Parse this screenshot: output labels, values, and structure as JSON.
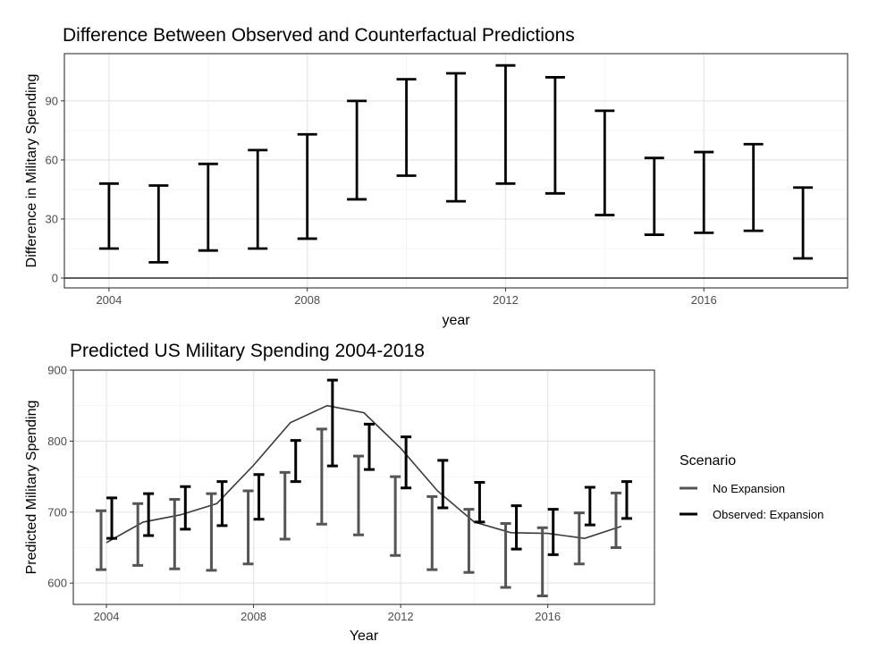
{
  "chart_data": [
    {
      "type": "errorbar",
      "title": "Difference Between Observed and Counterfactual Predictions",
      "xlabel": "year",
      "ylabel": "Difference in Military Spending",
      "xlim": [
        2003.1,
        2018.9
      ],
      "ylim": [
        -5,
        114
      ],
      "x_ticks": [
        2004,
        2008,
        2012,
        2016
      ],
      "y_ticks": [
        0,
        30,
        60,
        90
      ],
      "reference_line": 0,
      "grid": true,
      "series": [
        {
          "x": [
            2004,
            2005,
            2006,
            2007,
            2008,
            2009,
            2010,
            2011,
            2012,
            2013,
            2014,
            2015,
            2016,
            2017,
            2018
          ],
          "lower": [
            15,
            8,
            14,
            15,
            20,
            40,
            52,
            39,
            48,
            43,
            32,
            22,
            23,
            24,
            10
          ],
          "upper": [
            48,
            47,
            58,
            65,
            73,
            90,
            101,
            104,
            108,
            102,
            85,
            61,
            64,
            68,
            46
          ],
          "color": "#000000"
        }
      ]
    },
    {
      "type": "errorbar",
      "title": "Predicted US Military Spending 2004-2018",
      "xlabel": "Year",
      "ylabel": "Predicted Military Spending",
      "xlim": [
        2003.1,
        2018.9
      ],
      "ylim": [
        570,
        900
      ],
      "x_ticks": [
        2004,
        2008,
        2012,
        2016
      ],
      "y_ticks": [
        600,
        700,
        800,
        900
      ],
      "grid": true,
      "legend_title": "Scenario",
      "legend_position": "right",
      "trend_line": {
        "x": [
          2004,
          2005,
          2006,
          2007,
          2008,
          2009,
          2010,
          2011,
          2012,
          2013,
          2014,
          2015,
          2016,
          2017,
          2018
        ],
        "y": [
          657,
          686,
          696,
          712,
          766,
          826,
          850,
          840,
          790,
          730,
          686,
          671,
          670,
          663,
          680
        ],
        "color": "#3a3a3a"
      },
      "series": [
        {
          "name": "No Expansion",
          "color": "#555555",
          "x": [
            2004,
            2005,
            2006,
            2007,
            2008,
            2009,
            2010,
            2011,
            2012,
            2013,
            2014,
            2015,
            2016,
            2017,
            2018
          ],
          "lower": [
            619,
            625,
            620,
            618,
            627,
            662,
            683,
            668,
            639,
            619,
            615,
            594,
            582,
            627,
            650
          ],
          "upper": [
            702,
            712,
            718,
            726,
            730,
            756,
            817,
            779,
            750,
            722,
            704,
            684,
            678,
            699,
            727
          ]
        },
        {
          "name": "Observed: Expansion",
          "color": "#000000",
          "x": [
            2004,
            2005,
            2006,
            2007,
            2008,
            2009,
            2010,
            2011,
            2012,
            2013,
            2014,
            2015,
            2016,
            2017,
            2018
          ],
          "lower": [
            663,
            667,
            676,
            681,
            690,
            743,
            765,
            760,
            734,
            706,
            686,
            648,
            640,
            682,
            691
          ],
          "upper": [
            720,
            726,
            736,
            743,
            753,
            801,
            886,
            824,
            806,
            773,
            742,
            709,
            704,
            735,
            743
          ]
        }
      ]
    }
  ]
}
